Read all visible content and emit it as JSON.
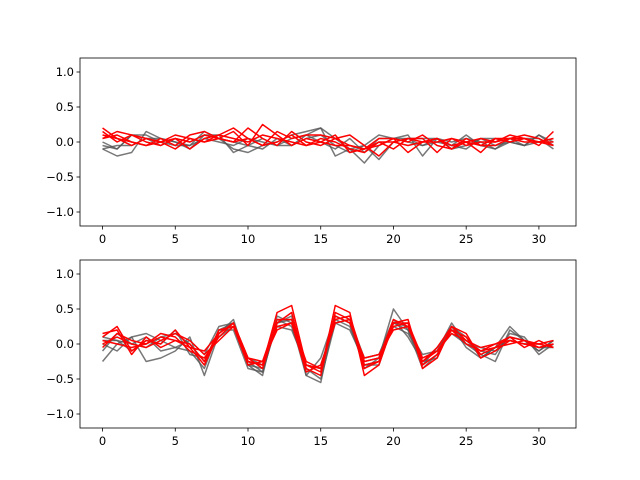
{
  "chart_data": [
    {
      "type": "line",
      "title": "",
      "xlabel": "",
      "ylabel": "",
      "xlim": [
        -1.55,
        32.55
      ],
      "ylim": [
        -1.2,
        1.2
      ],
      "xticks": [
        0,
        5,
        10,
        15,
        20,
        25,
        30
      ],
      "yticks": [
        -1.0,
        -0.5,
        0.0,
        0.5,
        1.0
      ],
      "xtick_labels": [
        "0",
        "5",
        "10",
        "15",
        "20",
        "25",
        "30"
      ],
      "ytick_labels": [
        "−1.0",
        "−0.5",
        "0.0",
        "0.5",
        "1.0"
      ],
      "grid": false,
      "series_colors": {
        "gray": "#555555",
        "red": "#ff0000"
      },
      "series": [
        {
          "color": "gray",
          "values": [
            -0.1,
            -0.2,
            -0.15,
            0.15,
            0.05,
            0.0,
            -0.1,
            0.1,
            0.05,
            -0.1,
            -0.15,
            -0.05,
            0.0,
            0.1,
            0.15,
            0.2,
            0.05,
            -0.1,
            -0.3,
            -0.05,
            0.05,
            0.1,
            -0.2,
            0.05,
            -0.1,
            -0.05,
            0.05,
            -0.05,
            0.0,
            -0.05,
            0.1,
            0.0
          ]
        },
        {
          "color": "gray",
          "values": [
            -0.05,
            -0.1,
            0.1,
            0.05,
            -0.05,
            0.05,
            0.0,
            0.1,
            0.1,
            -0.15,
            -0.05,
            -0.1,
            0.05,
            -0.05,
            0.1,
            0.2,
            -0.2,
            -0.1,
            -0.05,
            -0.25,
            0.0,
            0.05,
            -0.05,
            0.0,
            -0.05,
            0.1,
            -0.05,
            -0.1,
            0.05,
            -0.05,
            0.0,
            0.05
          ]
        },
        {
          "color": "gray",
          "values": [
            0.0,
            -0.1,
            0.1,
            0.1,
            0.0,
            -0.05,
            -0.05,
            0.05,
            0.0,
            -0.05,
            0.05,
            0.0,
            -0.05,
            0.05,
            0.1,
            0.0,
            -0.1,
            0.05,
            -0.15,
            0.05,
            0.05,
            0.0,
            -0.05,
            0.05,
            0.0,
            0.05,
            0.0,
            -0.1,
            0.0,
            0.05,
            0.05,
            -0.1
          ]
        },
        {
          "color": "gray",
          "values": [
            -0.1,
            -0.05,
            -0.05,
            0.05,
            0.05,
            0.0,
            -0.05,
            0.15,
            0.05,
            0.0,
            -0.05,
            0.05,
            -0.05,
            -0.05,
            0.05,
            0.1,
            -0.05,
            -0.15,
            -0.05,
            0.1,
            0.05,
            0.05,
            0.05,
            0.05,
            -0.05,
            -0.1,
            0.05,
            0.05,
            0.0,
            -0.05,
            0.1,
            -0.05
          ]
        },
        {
          "color": "red",
          "values": [
            0.2,
            0.05,
            0.0,
            -0.05,
            0.05,
            -0.05,
            0.1,
            0.15,
            0.05,
            0.0,
            0.2,
            0.05,
            -0.05,
            0.15,
            0.0,
            -0.05,
            0.05,
            0.1,
            -0.05,
            -0.2,
            0.0,
            0.05,
            0.05,
            -0.15,
            0.05,
            0.0,
            -0.15,
            0.05,
            0.05,
            0.05,
            -0.05,
            0.15
          ]
        },
        {
          "color": "red",
          "values": [
            0.05,
            0.15,
            0.1,
            0.05,
            0.0,
            0.1,
            0.05,
            0.0,
            0.1,
            0.2,
            0.05,
            -0.05,
            0.15,
            0.05,
            0.1,
            0.1,
            0.05,
            -0.05,
            -0.1,
            0.05,
            0.05,
            0.0,
            0.1,
            -0.05,
            -0.1,
            0.05,
            -0.05,
            -0.05,
            0.05,
            0.1,
            0.05,
            -0.05
          ]
        },
        {
          "color": "red",
          "values": [
            0.1,
            0.05,
            -0.05,
            0.05,
            0.0,
            -0.1,
            0.05,
            0.0,
            0.05,
            0.15,
            -0.05,
            0.25,
            0.1,
            -0.05,
            0.05,
            0.0,
            0.1,
            -0.15,
            -0.1,
            -0.05,
            0.05,
            -0.15,
            0.0,
            0.05,
            -0.05,
            0.0,
            0.05,
            0.0,
            0.1,
            0.05,
            0.0,
            -0.05
          ]
        },
        {
          "color": "red",
          "values": [
            0.15,
            0.0,
            0.1,
            0.0,
            -0.05,
            0.05,
            -0.1,
            0.05,
            0.1,
            0.05,
            0.0,
            0.1,
            0.05,
            0.0,
            -0.05,
            0.05,
            0.0,
            -0.1,
            -0.15,
            0.0,
            -0.1,
            0.05,
            0.0,
            0.05,
            -0.1,
            0.0,
            -0.05,
            0.05,
            0.0,
            0.05,
            0.0,
            0.05
          ]
        },
        {
          "color": "red",
          "values": [
            0.05,
            0.1,
            0.0,
            -0.05,
            0.0,
            0.05,
            0.0,
            0.1,
            0.05,
            0.0,
            0.05,
            -0.05,
            0.0,
            0.1,
            -0.05,
            0.0,
            -0.05,
            -0.05,
            -0.1,
            0.0,
            0.0,
            -0.05,
            0.0,
            0.0,
            0.05,
            -0.05,
            0.0,
            0.0,
            0.05,
            0.0,
            0.0,
            0.0
          ]
        }
      ]
    },
    {
      "type": "line",
      "title": "",
      "xlabel": "",
      "ylabel": "",
      "xlim": [
        -1.55,
        32.55
      ],
      "ylim": [
        -1.2,
        1.2
      ],
      "xticks": [
        0,
        5,
        10,
        15,
        20,
        25,
        30
      ],
      "yticks": [
        -1.0,
        -0.5,
        0.0,
        0.5,
        1.0
      ],
      "xtick_labels": [
        "0",
        "5",
        "10",
        "15",
        "20",
        "25",
        "30"
      ],
      "ytick_labels": [
        "−1.0",
        "−0.5",
        "0.0",
        "0.5",
        "1.0"
      ],
      "grid": false,
      "series_colors": {
        "gray": "#555555",
        "red": "#ff0000"
      },
      "series": [
        {
          "color": "gray",
          "values": [
            -0.25,
            0.0,
            0.1,
            -0.25,
            -0.2,
            -0.1,
            0.1,
            -0.45,
            0.15,
            0.35,
            -0.3,
            -0.45,
            0.4,
            0.3,
            -0.45,
            -0.2,
            0.4,
            0.3,
            -0.35,
            -0.2,
            0.5,
            0.2,
            -0.15,
            -0.1,
            0.3,
            0.0,
            -0.15,
            -0.25,
            0.2,
            0.05,
            -0.1,
            0.05
          ]
        },
        {
          "color": "gray",
          "values": [
            -0.1,
            0.15,
            0.0,
            0.1,
            -0.1,
            -0.05,
            -0.1,
            -0.35,
            0.2,
            0.3,
            -0.25,
            -0.4,
            0.3,
            0.35,
            -0.4,
            -0.3,
            0.35,
            0.25,
            -0.3,
            -0.25,
            0.3,
            0.25,
            -0.3,
            -0.05,
            0.2,
            0.05,
            -0.1,
            -0.15,
            0.15,
            0.1,
            -0.15,
            0.0
          ]
        },
        {
          "color": "gray",
          "values": [
            0.05,
            0.05,
            -0.1,
            0.05,
            0.0,
            0.2,
            -0.15,
            -0.2,
            0.1,
            0.25,
            -0.3,
            -0.35,
            0.35,
            0.25,
            -0.35,
            -0.5,
            0.3,
            0.35,
            -0.2,
            -0.15,
            0.35,
            0.1,
            -0.25,
            -0.2,
            0.25,
            0.1,
            -0.2,
            -0.05,
            0.25,
            0.05,
            -0.05,
            -0.05
          ]
        },
        {
          "color": "gray",
          "values": [
            0.0,
            -0.1,
            0.1,
            0.15,
            0.05,
            -0.05,
            0.05,
            -0.15,
            0.25,
            0.3,
            -0.2,
            -0.3,
            0.25,
            0.2,
            -0.3,
            -0.35,
            0.3,
            0.2,
            -0.25,
            -0.2,
            0.25,
            0.15,
            -0.2,
            -0.1,
            0.15,
            0.0,
            -0.05,
            -0.1,
            0.1,
            0.05,
            -0.1,
            0.05
          ]
        },
        {
          "color": "gray",
          "values": [
            0.1,
            0.05,
            0.0,
            -0.05,
            0.1,
            0.15,
            0.0,
            -0.25,
            0.2,
            0.2,
            -0.35,
            -0.4,
            0.3,
            0.4,
            -0.45,
            -0.55,
            0.4,
            0.3,
            -0.3,
            -0.3,
            0.3,
            0.2,
            -0.35,
            -0.15,
            0.25,
            -0.05,
            -0.2,
            -0.05,
            0.05,
            0.0,
            0.0,
            -0.05
          ]
        },
        {
          "color": "red",
          "values": [
            0.1,
            0.25,
            -0.1,
            0.05,
            0.0,
            0.2,
            -0.05,
            -0.3,
            0.15,
            0.3,
            -0.25,
            -0.3,
            0.45,
            0.55,
            -0.3,
            -0.4,
            0.55,
            0.45,
            -0.45,
            -0.3,
            0.3,
            0.35,
            -0.35,
            -0.2,
            0.25,
            0.15,
            -0.2,
            -0.1,
            0.05,
            0.0,
            0.0,
            0.05
          ]
        },
        {
          "color": "red",
          "values": [
            0.05,
            0.0,
            -0.05,
            0.0,
            0.15,
            0.1,
            -0.1,
            -0.2,
            0.1,
            0.3,
            -0.2,
            -0.35,
            0.3,
            0.45,
            -0.35,
            -0.45,
            0.45,
            0.35,
            -0.35,
            -0.25,
            0.25,
            0.3,
            -0.3,
            -0.15,
            0.2,
            0.1,
            -0.15,
            -0.05,
            0.0,
            0.05,
            -0.05,
            0.0
          ]
        },
        {
          "color": "red",
          "values": [
            0.15,
            0.2,
            -0.15,
            0.1,
            -0.05,
            0.05,
            0.0,
            -0.25,
            0.2,
            0.25,
            -0.3,
            -0.25,
            0.35,
            0.35,
            -0.25,
            -0.35,
            0.35,
            0.4,
            -0.25,
            -0.2,
            0.35,
            0.25,
            -0.25,
            -0.1,
            0.15,
            0.05,
            -0.05,
            0.0,
            0.1,
            -0.05,
            0.05,
            -0.05
          ]
        },
        {
          "color": "red",
          "values": [
            0.0,
            0.1,
            0.0,
            -0.05,
            0.05,
            0.15,
            0.05,
            -0.15,
            0.05,
            0.25,
            -0.25,
            -0.3,
            0.25,
            0.3,
            -0.4,
            -0.3,
            0.3,
            0.35,
            -0.3,
            -0.25,
            0.3,
            0.3,
            -0.2,
            -0.1,
            0.2,
            0.0,
            -0.1,
            0.0,
            0.05,
            0.0,
            -0.05,
            0.0
          ]
        },
        {
          "color": "red",
          "values": [
            -0.05,
            0.15,
            0.05,
            0.0,
            0.1,
            0.05,
            -0.05,
            -0.1,
            0.15,
            0.3,
            -0.2,
            -0.25,
            0.2,
            0.3,
            -0.3,
            -0.35,
            0.4,
            0.3,
            -0.2,
            -0.15,
            0.2,
            0.25,
            -0.25,
            -0.05,
            0.25,
            0.05,
            -0.1,
            -0.05,
            0.1,
            0.05,
            0.0,
            -0.05
          ]
        }
      ]
    }
  ]
}
